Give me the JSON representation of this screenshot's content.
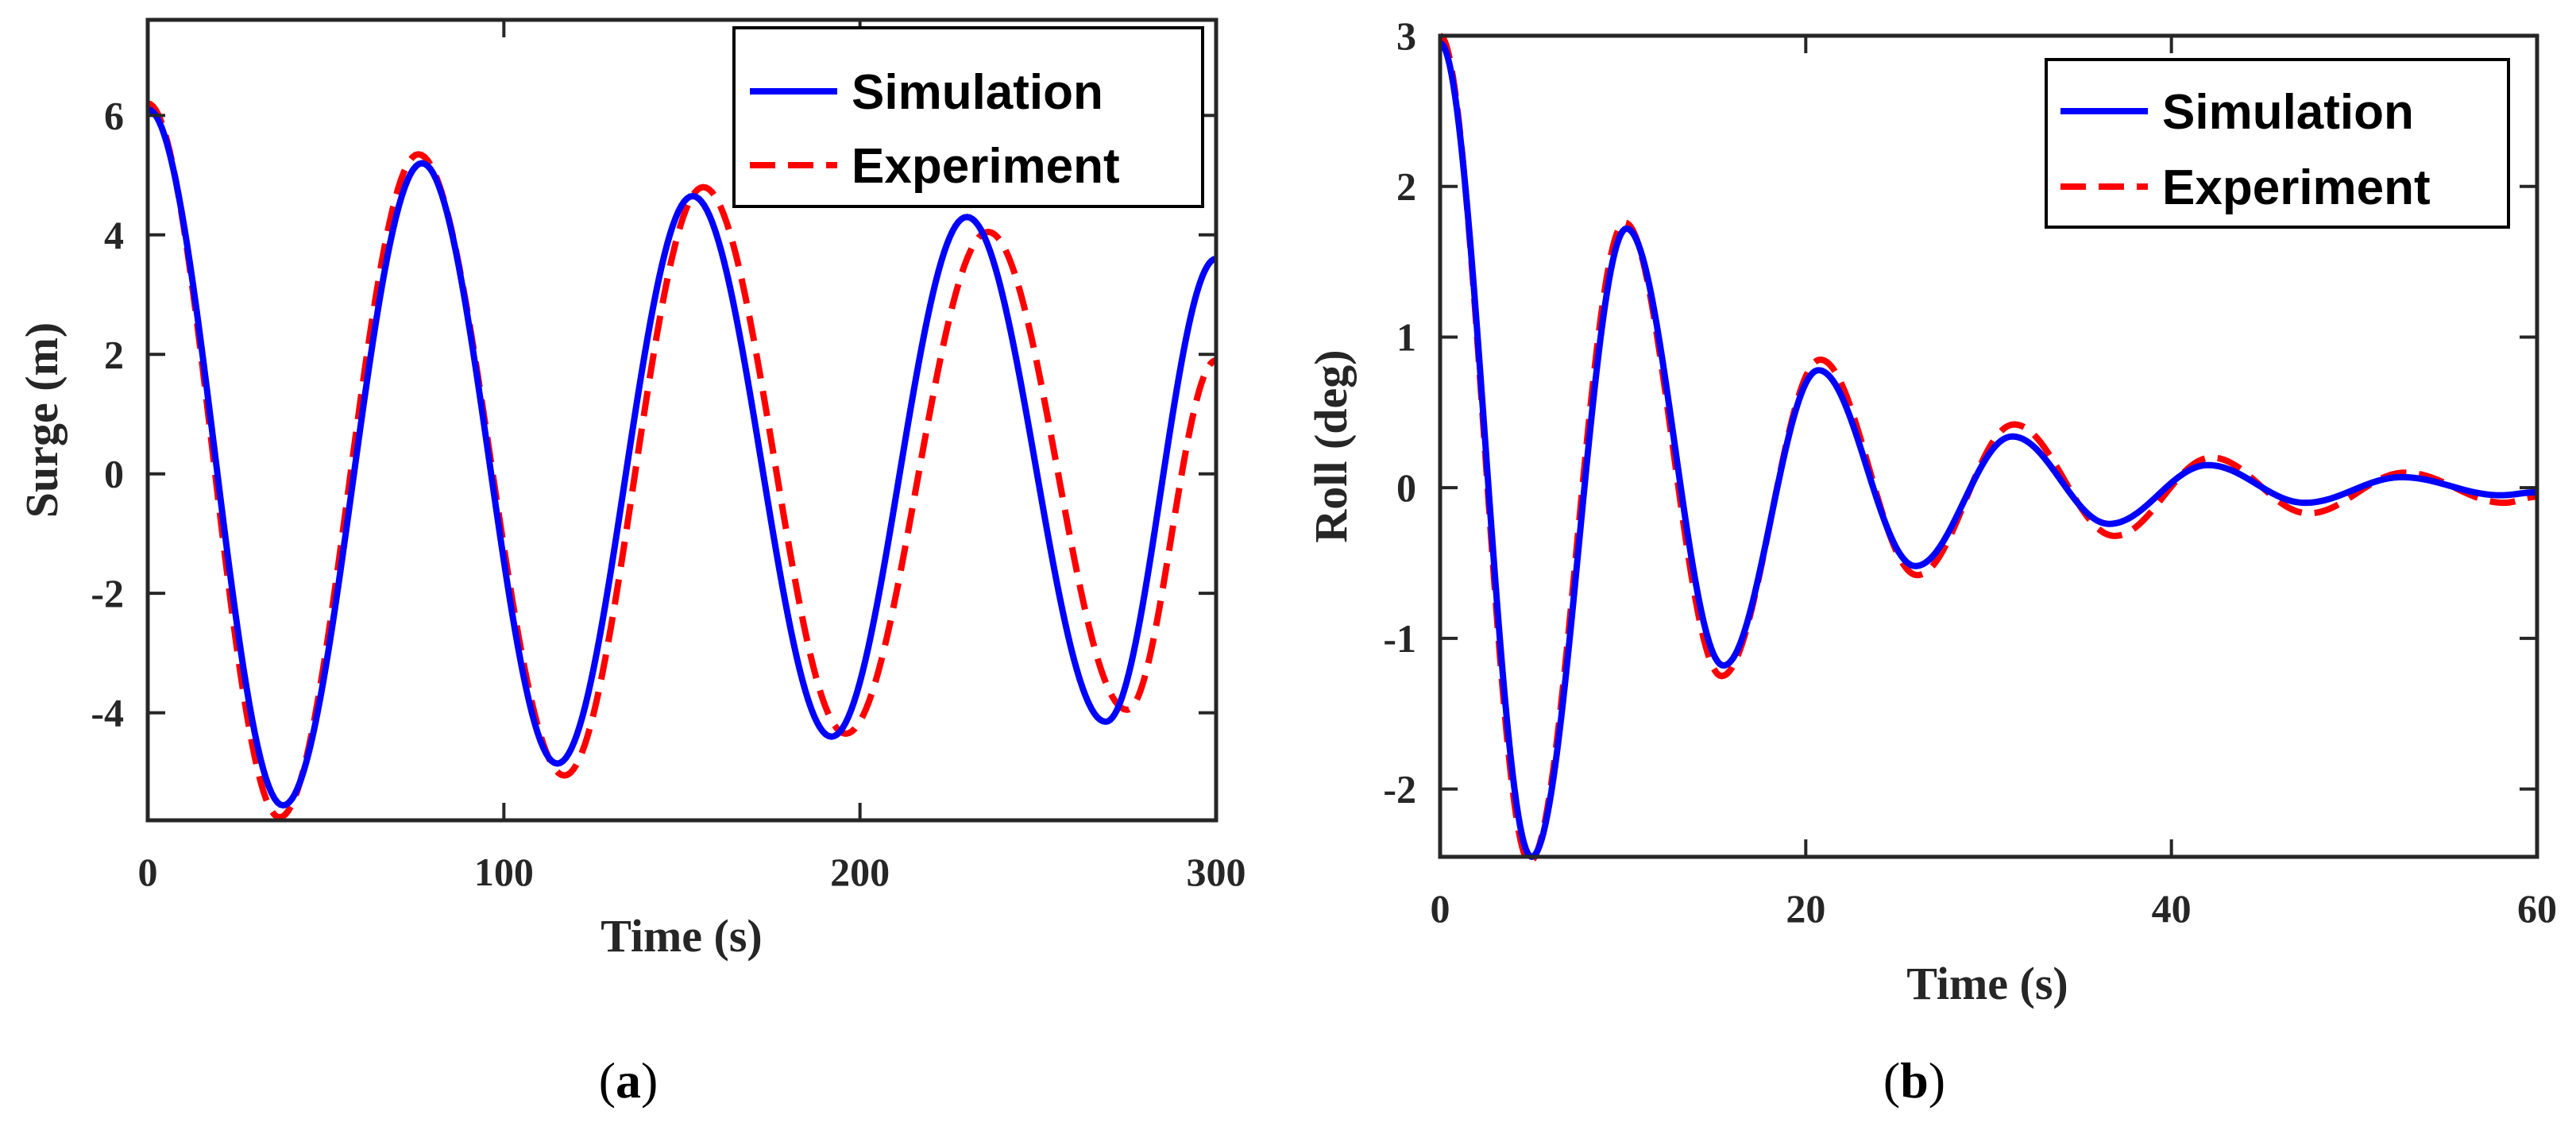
{
  "colors": {
    "simulation": "#0000ff",
    "experiment": "#ff0000",
    "axis": "#262626",
    "legend_box": "#000000"
  },
  "chart_data": [
    {
      "type": "line",
      "panel": "a",
      "caption": "(a)",
      "caption_parts": [
        "(",
        "a",
        ")"
      ],
      "title": "",
      "xlabel": "Time (s)",
      "ylabel": "Surge (m)",
      "xlim": [
        0,
        300
      ],
      "ylim": [
        -5.8,
        7.6
      ],
      "xticks": [
        0,
        100,
        200,
        300
      ],
      "xtick_labels": [
        "0",
        "100",
        "200",
        "300"
      ],
      "yticks": [
        -4,
        -2,
        0,
        2,
        4,
        6
      ],
      "ytick_labels": [
        "-4",
        "-2",
        "0",
        "2",
        "4",
        "6"
      ],
      "grid": false,
      "legend": {
        "position": "top-right",
        "entries": [
          "Simulation",
          "Experiment"
        ]
      },
      "series": [
        {
          "name": "Simulation",
          "style": "solid",
          "x": [
            0,
            38,
            77,
            115,
            153,
            192,
            230,
            269,
            300
          ],
          "y": [
            6.1,
            -5.55,
            5.2,
            -4.85,
            4.65,
            -4.4,
            4.3,
            -4.15,
            3.6
          ]
        },
        {
          "name": "Experiment",
          "style": "dashed",
          "x": [
            0,
            37,
            76,
            117,
            156,
            196,
            236,
            275,
            300
          ],
          "y": [
            6.2,
            -5.75,
            5.35,
            -5.05,
            4.8,
            -4.35,
            4.05,
            -3.95,
            1.9
          ]
        }
      ]
    },
    {
      "type": "line",
      "panel": "b",
      "caption": "(b)",
      "caption_parts": [
        "(",
        "b",
        ")"
      ],
      "title": "",
      "xlabel": "Time (s)",
      "ylabel": "Roll (deg)",
      "xlim": [
        0,
        60
      ],
      "ylim": [
        -2.45,
        3.0
      ],
      "xticks": [
        0,
        20,
        40,
        60
      ],
      "xtick_labels": [
        "0",
        "20",
        "40",
        "60"
      ],
      "yticks": [
        -2,
        -1,
        0,
        1,
        2,
        3
      ],
      "ytick_labels": [
        "-2",
        "-1",
        "0",
        "1",
        "2",
        "3"
      ],
      "grid": false,
      "legend": {
        "position": "top-right",
        "entries": [
          "Simulation",
          "Experiment"
        ]
      },
      "series": [
        {
          "name": "Simulation",
          "style": "solid",
          "x": [
            0,
            5,
            10.2,
            15.5,
            20.7,
            26,
            31.3,
            36.6,
            42,
            47.3,
            52.6,
            58,
            60
          ],
          "y": [
            2.95,
            -2.45,
            1.72,
            -1.18,
            0.78,
            -0.52,
            0.34,
            -0.24,
            0.15,
            -0.1,
            0.07,
            -0.05,
            -0.03
          ]
        },
        {
          "name": "Experiment",
          "style": "dashed",
          "x": [
            0,
            4.9,
            10.1,
            15.4,
            20.8,
            26.1,
            31.4,
            36.9,
            42.2,
            47.5,
            52.8,
            58.2,
            60
          ],
          "y": [
            3.0,
            -2.48,
            1.76,
            -1.25,
            0.85,
            -0.58,
            0.42,
            -0.32,
            0.2,
            -0.17,
            0.1,
            -0.1,
            -0.06
          ]
        }
      ]
    }
  ]
}
